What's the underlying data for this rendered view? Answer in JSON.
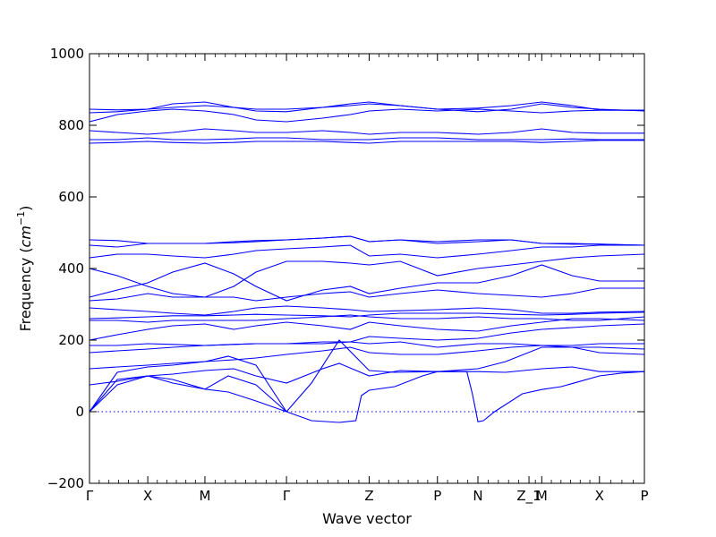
{
  "chart_data": {
    "type": "line",
    "title": "",
    "xlabel": "Wave vector",
    "ylabel_prefix": "Frequency (",
    "ylabel_unit_base": "cm",
    "ylabel_unit_exp": "−1",
    "ylabel_suffix": ")",
    "ylim": [
      -200,
      1000
    ],
    "yticks": [
      -200,
      0,
      200,
      400,
      600,
      800,
      1000
    ],
    "xlim": [
      0,
      1
    ],
    "grid": false,
    "high_symmetry_points": [
      {
        "label": "Γ",
        "x": 0.0
      },
      {
        "label": "X",
        "x": 0.105
      },
      {
        "label": "M",
        "x": 0.208
      },
      {
        "label": "Γ",
        "x": 0.355
      },
      {
        "label": "Z",
        "x": 0.504
      },
      {
        "label": "P",
        "x": 0.627
      },
      {
        "label": "N",
        "x": 0.7
      },
      {
        "label": "Z_1",
        "x": 0.792
      },
      {
        "label": "M",
        "x": 0.815
      },
      {
        "label": "X",
        "x": 0.919
      },
      {
        "label": "P",
        "x": 1.0
      }
    ],
    "reference_line": {
      "y": 0,
      "style": "dotted"
    },
    "series_color": "#0000ff",
    "series": [
      {
        "x": [
          0,
          0.05,
          0.105,
          0.15,
          0.208,
          0.25,
          0.3,
          0.355
        ],
        "y": [
          0,
          75,
          100,
          80,
          63,
          55,
          30,
          0
        ]
      },
      {
        "x": [
          0,
          0.05,
          0.105,
          0.15,
          0.208,
          0.25,
          0.3,
          0.355
        ],
        "y": [
          0,
          90,
          100,
          90,
          63,
          100,
          75,
          0
        ]
      },
      {
        "x": [
          0,
          0.05,
          0.105,
          0.15,
          0.208,
          0.25,
          0.3,
          0.355
        ],
        "y": [
          0,
          110,
          125,
          130,
          140,
          155,
          130,
          0
        ]
      },
      {
        "x": [
          0.355,
          0.4,
          0.45,
          0.48,
          0.49,
          0.504,
          0.55,
          0.6,
          0.627,
          0.65,
          0.68,
          0.69,
          0.7,
          0.71,
          0.73,
          0.78,
          0.815,
          0.85,
          0.919,
          0.96,
          1.0
        ],
        "y": [
          0,
          -25,
          -30,
          -25,
          45,
          60,
          70,
          100,
          112,
          112,
          112,
          50,
          -28,
          -25,
          0,
          50,
          62,
          70,
          100,
          108,
          112
        ]
      },
      {
        "x": [
          0.355,
          0.4,
          0.45,
          0.504,
          0.55,
          0.627,
          0.7,
          0.75,
          0.815,
          0.87,
          0.919,
          1.0
        ],
        "y": [
          0,
          80,
          200,
          115,
          110,
          112,
          112,
          110,
          120,
          125,
          112,
          112
        ]
      },
      {
        "x": [
          0,
          0.05,
          0.105,
          0.15,
          0.208,
          0.26,
          0.3,
          0.355,
          0.42,
          0.45,
          0.504,
          0.56,
          0.627,
          0.7,
          0.75,
          0.815,
          0.87,
          0.919,
          1.0
        ],
        "y": [
          75,
          85,
          100,
          105,
          115,
          120,
          100,
          80,
          120,
          135,
          100,
          115,
          112,
          120,
          140,
          180,
          180,
          180,
          175
        ]
      },
      {
        "x": [
          0,
          0.05,
          0.105,
          0.15,
          0.208,
          0.26,
          0.3,
          0.355,
          0.42,
          0.47,
          0.504,
          0.56,
          0.627,
          0.7,
          0.76,
          0.815,
          0.87,
          0.919,
          1.0
        ],
        "y": [
          120,
          125,
          130,
          135,
          140,
          145,
          150,
          160,
          170,
          180,
          165,
          160,
          160,
          170,
          180,
          185,
          180,
          165,
          160
        ]
      },
      {
        "x": [
          0,
          0.05,
          0.105,
          0.15,
          0.208,
          0.26,
          0.3,
          0.355,
          0.42,
          0.47,
          0.504,
          0.56,
          0.627,
          0.7,
          0.76,
          0.815,
          0.87,
          0.919,
          1.0
        ],
        "y": [
          165,
          170,
          175,
          180,
          185,
          188,
          190,
          190,
          190,
          195,
          190,
          195,
          180,
          190,
          190,
          185,
          185,
          190,
          190
        ]
      },
      {
        "x": [
          0,
          0.05,
          0.105,
          0.15,
          0.208,
          0.26,
          0.3,
          0.355,
          0.42,
          0.47,
          0.504,
          0.56,
          0.627,
          0.7,
          0.76,
          0.815,
          0.87,
          0.919,
          1.0
        ],
        "y": [
          185,
          185,
          190,
          188,
          185,
          188,
          190,
          190,
          195,
          195,
          210,
          205,
          200,
          205,
          220,
          230,
          235,
          240,
          245
        ]
      },
      {
        "x": [
          0,
          0.05,
          0.105,
          0.15,
          0.208,
          0.26,
          0.3,
          0.355,
          0.42,
          0.47,
          0.504,
          0.56,
          0.627,
          0.7,
          0.76,
          0.815,
          0.87,
          0.919,
          1.0
        ],
        "y": [
          200,
          215,
          230,
          240,
          245,
          230,
          240,
          250,
          240,
          230,
          250,
          240,
          230,
          225,
          240,
          250,
          260,
          260,
          255
        ]
      },
      {
        "x": [
          0,
          0.05,
          0.105,
          0.15,
          0.208,
          0.26,
          0.3,
          0.355,
          0.42,
          0.47,
          0.504,
          0.56,
          0.627,
          0.7,
          0.76,
          0.815,
          0.87,
          0.919,
          1.0
        ],
        "y": [
          255,
          255,
          250,
          255,
          255,
          255,
          255,
          260,
          265,
          270,
          265,
          260,
          260,
          265,
          260,
          260,
          255,
          255,
          265
        ]
      },
      {
        "x": [
          0,
          0.05,
          0.105,
          0.15,
          0.208,
          0.26,
          0.3,
          0.355,
          0.42,
          0.47,
          0.504,
          0.56,
          0.627,
          0.7,
          0.76,
          0.815,
          0.87,
          0.919,
          1.0
        ],
        "y": [
          260,
          262,
          265,
          268,
          268,
          270,
          272,
          270,
          268,
          265,
          270,
          275,
          275,
          275,
          272,
          270,
          272,
          275,
          278
        ]
      },
      {
        "x": [
          0,
          0.05,
          0.105,
          0.15,
          0.208,
          0.26,
          0.3,
          0.355,
          0.42,
          0.47,
          0.504,
          0.56,
          0.627,
          0.7,
          0.76,
          0.815,
          0.87,
          0.919,
          1.0
        ],
        "y": [
          290,
          285,
          280,
          275,
          270,
          280,
          290,
          295,
          290,
          285,
          280,
          282,
          285,
          290,
          285,
          275,
          275,
          278,
          280
        ]
      },
      {
        "x": [
          0,
          0.05,
          0.105,
          0.15,
          0.208,
          0.26,
          0.3,
          0.355,
          0.42,
          0.47,
          0.504,
          0.56,
          0.627,
          0.7,
          0.76,
          0.815,
          0.87,
          0.919,
          1.0
        ],
        "y": [
          310,
          315,
          330,
          320,
          320,
          320,
          310,
          320,
          330,
          335,
          320,
          330,
          340,
          330,
          325,
          320,
          330,
          345,
          345
        ]
      },
      {
        "x": [
          0,
          0.05,
          0.105,
          0.15,
          0.208,
          0.26,
          0.3,
          0.355,
          0.42,
          0.47,
          0.504,
          0.56,
          0.627,
          0.7,
          0.76,
          0.815,
          0.87,
          0.919,
          1.0
        ],
        "y": [
          320,
          340,
          360,
          390,
          415,
          385,
          350,
          310,
          340,
          350,
          330,
          345,
          360,
          360,
          380,
          410,
          380,
          365,
          365
        ]
      },
      {
        "x": [
          0,
          0.05,
          0.105,
          0.15,
          0.208,
          0.26,
          0.3,
          0.355,
          0.42,
          0.47,
          0.504,
          0.56,
          0.627,
          0.7,
          0.76,
          0.815,
          0.87,
          0.919,
          1.0
        ],
        "y": [
          400,
          380,
          350,
          330,
          320,
          350,
          390,
          420,
          420,
          415,
          410,
          420,
          380,
          400,
          410,
          420,
          430,
          435,
          440
        ]
      },
      {
        "x": [
          0,
          0.05,
          0.105,
          0.15,
          0.208,
          0.26,
          0.3,
          0.355,
          0.42,
          0.47,
          0.504,
          0.56,
          0.627,
          0.7,
          0.76,
          0.815,
          0.87,
          0.919,
          1.0
        ],
        "y": [
          430,
          440,
          440,
          435,
          430,
          440,
          450,
          455,
          460,
          465,
          435,
          440,
          430,
          440,
          450,
          460,
          460,
          465,
          465
        ]
      },
      {
        "x": [
          0,
          0.05,
          0.105,
          0.15,
          0.208,
          0.26,
          0.3,
          0.355,
          0.42,
          0.47,
          0.504,
          0.56,
          0.627,
          0.7,
          0.76,
          0.815,
          0.87,
          0.919,
          1.0
        ],
        "y": [
          465,
          460,
          470,
          470,
          470,
          472,
          475,
          480,
          485,
          490,
          475,
          480,
          470,
          475,
          480,
          470,
          468,
          468,
          465
        ]
      },
      {
        "x": [
          0,
          0.05,
          0.105,
          0.15,
          0.208,
          0.26,
          0.3,
          0.355,
          0.42,
          0.47,
          0.504,
          0.56,
          0.627,
          0.7,
          0.76,
          0.815,
          0.87,
          0.919,
          1.0
        ],
        "y": [
          480,
          478,
          470,
          470,
          470,
          475,
          478,
          480,
          485,
          490,
          475,
          480,
          475,
          480,
          480,
          470,
          470,
          468,
          465
        ]
      },
      {
        "x": [
          0,
          0.05,
          0.105,
          0.15,
          0.208,
          0.26,
          0.3,
          0.355,
          0.42,
          0.47,
          0.504,
          0.56,
          0.627,
          0.7,
          0.76,
          0.815,
          0.87,
          0.919,
          1.0
        ],
        "y": [
          750,
          752,
          755,
          752,
          750,
          752,
          755,
          755,
          755,
          752,
          750,
          755,
          755,
          755,
          755,
          752,
          755,
          758,
          758
        ]
      },
      {
        "x": [
          0,
          0.05,
          0.105,
          0.15,
          0.208,
          0.26,
          0.3,
          0.355,
          0.42,
          0.47,
          0.504,
          0.56,
          0.627,
          0.7,
          0.76,
          0.815,
          0.87,
          0.919,
          1.0
        ],
        "y": [
          760,
          760,
          765,
          760,
          760,
          762,
          765,
          765,
          760,
          760,
          760,
          765,
          765,
          760,
          760,
          760,
          762,
          760,
          760
        ]
      },
      {
        "x": [
          0,
          0.05,
          0.105,
          0.15,
          0.208,
          0.26,
          0.3,
          0.355,
          0.42,
          0.47,
          0.504,
          0.56,
          0.627,
          0.7,
          0.76,
          0.815,
          0.87,
          0.919,
          1.0
        ],
        "y": [
          785,
          780,
          775,
          780,
          790,
          785,
          780,
          780,
          785,
          780,
          775,
          780,
          780,
          775,
          780,
          790,
          780,
          778,
          778
        ]
      },
      {
        "x": [
          0,
          0.05,
          0.105,
          0.15,
          0.208,
          0.26,
          0.3,
          0.355,
          0.42,
          0.47,
          0.504,
          0.56,
          0.627,
          0.7,
          0.76,
          0.815,
          0.87,
          0.919,
          1.0
        ],
        "y": [
          810,
          830,
          840,
          845,
          840,
          830,
          815,
          810,
          820,
          830,
          840,
          845,
          840,
          845,
          840,
          835,
          840,
          842,
          842
        ]
      },
      {
        "x": [
          0,
          0.05,
          0.105,
          0.15,
          0.208,
          0.26,
          0.3,
          0.355,
          0.42,
          0.47,
          0.504,
          0.56,
          0.627,
          0.7,
          0.76,
          0.815,
          0.87,
          0.919,
          1.0
        ],
        "y": [
          835,
          838,
          845,
          860,
          865,
          850,
          840,
          838,
          850,
          855,
          860,
          855,
          845,
          838,
          845,
          860,
          850,
          845,
          840
        ]
      },
      {
        "x": [
          0,
          0.05,
          0.105,
          0.15,
          0.208,
          0.26,
          0.3,
          0.355,
          0.42,
          0.47,
          0.504,
          0.56,
          0.627,
          0.7,
          0.76,
          0.815,
          0.87,
          0.919,
          1.0
        ],
        "y": [
          845,
          843,
          845,
          850,
          855,
          850,
          845,
          845,
          850,
          860,
          865,
          855,
          845,
          848,
          855,
          865,
          855,
          843,
          842
        ]
      }
    ]
  }
}
